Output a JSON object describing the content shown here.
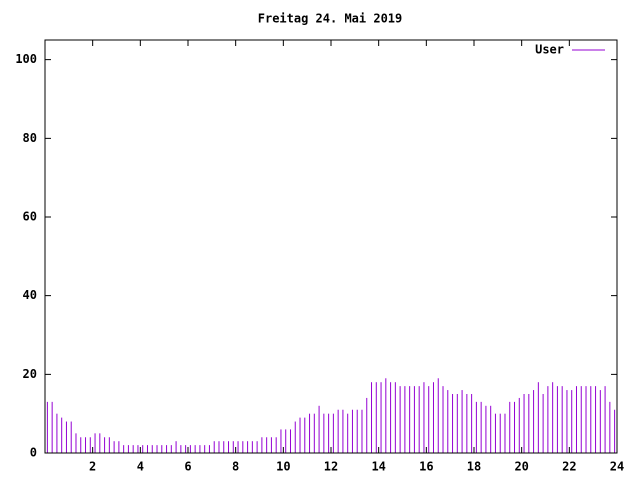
{
  "chart_data": {
    "type": "impulse",
    "title": "Freitag 24. Mai 2019",
    "xlim": [
      0,
      24
    ],
    "xticks": [
      2,
      4,
      6,
      8,
      10,
      12,
      14,
      16,
      18,
      20,
      22,
      24
    ],
    "ylim": [
      0,
      105
    ],
    "yticks": [
      0,
      20,
      40,
      60,
      80,
      100
    ],
    "legend": "top-right",
    "series": [
      {
        "name": "User",
        "color": "#9400d3",
        "x": [
          0.1,
          0.3,
          0.5,
          0.7,
          0.9,
          1.1,
          1.3,
          1.5,
          1.7,
          1.9,
          2.1,
          2.3,
          2.5,
          2.7,
          2.9,
          3.1,
          3.3,
          3.5,
          3.7,
          3.9,
          4.1,
          4.3,
          4.5,
          4.7,
          4.9,
          5.1,
          5.3,
          5.5,
          5.7,
          5.9,
          6.1,
          6.3,
          6.5,
          6.7,
          6.9,
          7.1,
          7.3,
          7.5,
          7.7,
          7.9,
          8.1,
          8.3,
          8.5,
          8.7,
          8.9,
          9.1,
          9.3,
          9.5,
          9.7,
          9.9,
          10.1,
          10.3,
          10.5,
          10.7,
          10.9,
          11.1,
          11.3,
          11.5,
          11.7,
          11.9,
          12.1,
          12.3,
          12.5,
          12.7,
          12.9,
          13.1,
          13.3,
          13.5,
          13.7,
          13.9,
          14.1,
          14.3,
          14.5,
          14.7,
          14.9,
          15.1,
          15.3,
          15.5,
          15.7,
          15.9,
          16.1,
          16.3,
          16.5,
          16.7,
          16.9,
          17.1,
          17.3,
          17.5,
          17.7,
          17.9,
          18.1,
          18.3,
          18.5,
          18.7,
          18.9,
          19.1,
          19.3,
          19.5,
          19.7,
          19.9,
          20.1,
          20.3,
          20.5,
          20.7,
          20.9,
          21.1,
          21.3,
          21.5,
          21.7,
          21.9,
          22.1,
          22.3,
          22.5,
          22.7,
          22.9,
          23.1,
          23.3,
          23.5,
          23.7,
          23.9
        ],
        "values": [
          13,
          13,
          10,
          9,
          8,
          8,
          5,
          4,
          4,
          4,
          5,
          5,
          4,
          4,
          3,
          3,
          2,
          2,
          2,
          2,
          2,
          2,
          2,
          2,
          2,
          2,
          2,
          3,
          2,
          2,
          2,
          2,
          2,
          2,
          2,
          3,
          3,
          3,
          3,
          3,
          3,
          3,
          3,
          3,
          3,
          4,
          4,
          4,
          4,
          6,
          6,
          6,
          8,
          9,
          9,
          10,
          10,
          12,
          10,
          10,
          10,
          11,
          11,
          10,
          11,
          11,
          11,
          14,
          18,
          18,
          18,
          19,
          18,
          18,
          17,
          17,
          17,
          17,
          17,
          18,
          17,
          18,
          19,
          17,
          16,
          15,
          15,
          16,
          15,
          15,
          13,
          13,
          12,
          12,
          10,
          10,
          10,
          13,
          13,
          14,
          15,
          15,
          16,
          18,
          15,
          17,
          18,
          17,
          17,
          16,
          16,
          17,
          17,
          17,
          17,
          17,
          16,
          17,
          13,
          11
        ]
      }
    ]
  }
}
